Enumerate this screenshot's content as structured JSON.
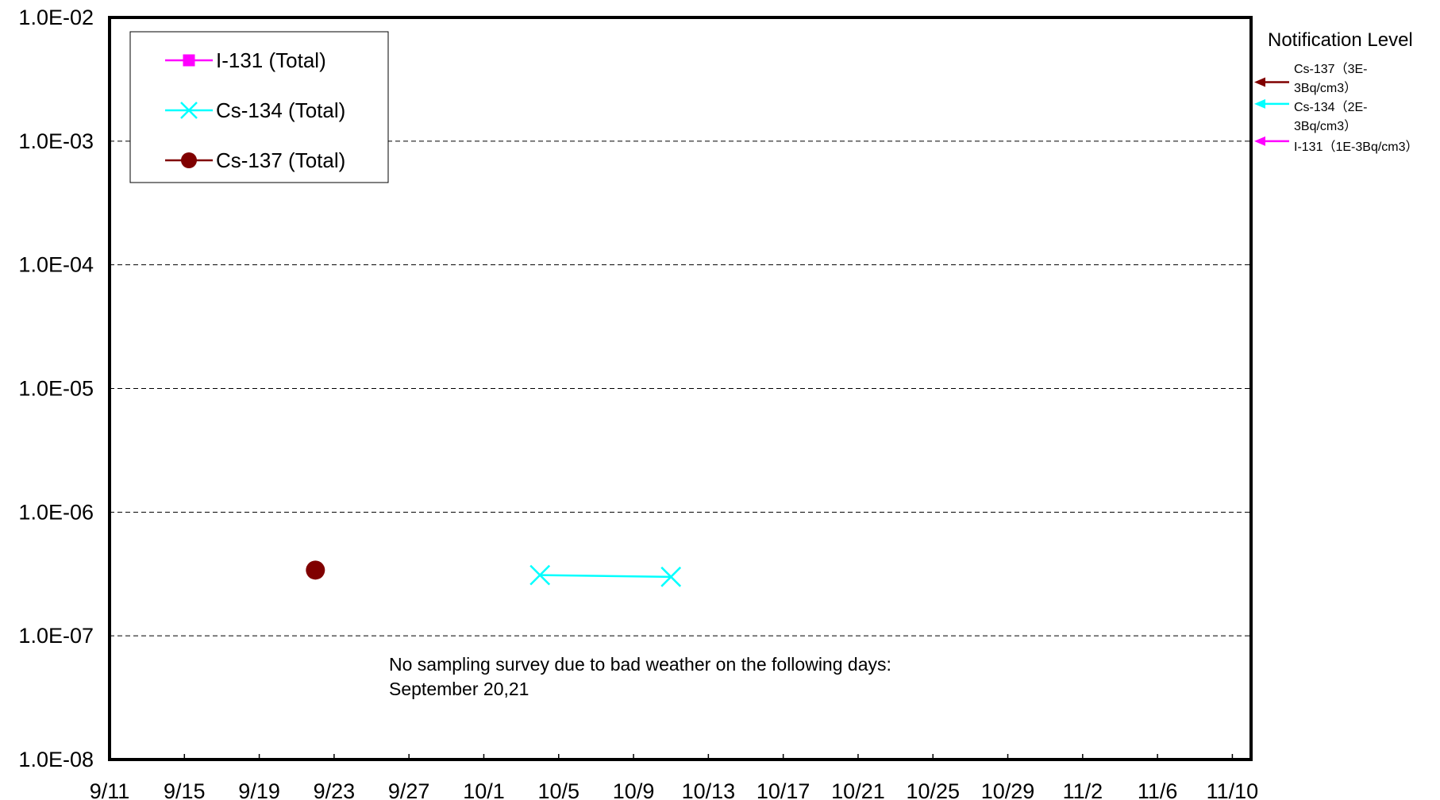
{
  "chart_data": {
    "type": "line",
    "title": "",
    "xlabel": "",
    "ylabel": "",
    "y_scale": "log",
    "ylim": [
      "1.0E-08",
      "1.0E-02"
    ],
    "xlim": [
      "2011-09-11",
      "2011-11-11"
    ],
    "x_tick_labels": [
      "9/11",
      "9/15",
      "9/19",
      "9/23",
      "9/27",
      "10/1",
      "10/5",
      "10/9",
      "10/13",
      "10/17",
      "10/21",
      "10/25",
      "10/29",
      "11/2",
      "11/6",
      "11/10"
    ],
    "x_tick_dates": [
      "2011-09-11",
      "2011-09-15",
      "2011-09-19",
      "2011-09-23",
      "2011-09-27",
      "2011-10-01",
      "2011-10-05",
      "2011-10-09",
      "2011-10-13",
      "2011-10-17",
      "2011-10-21",
      "2011-10-25",
      "2011-10-29",
      "2011-11-02",
      "2011-11-06",
      "2011-11-10"
    ],
    "y_tick_labels": [
      "1.0E-02",
      "1.0E-03",
      "1.0E-04",
      "1.0E-05",
      "1.0E-06",
      "1.0E-07",
      "1.0E-08"
    ],
    "y_tick_values": [
      0.01,
      0.001,
      0.0001,
      1e-05,
      1e-06,
      1e-07,
      1e-08
    ],
    "grid": "horizontal dashed",
    "legend_placement": "top-left",
    "series": [
      {
        "name": "I-131 (Total)",
        "color": "#ff00ff",
        "marker": "square",
        "x": [],
        "y": []
      },
      {
        "name": "Cs-134 (Total)",
        "color": "#00ffff",
        "marker": "x",
        "x": [
          "2011-10-04",
          "2011-10-11"
        ],
        "y": [
          3.1e-07,
          3e-07
        ]
      },
      {
        "name": "Cs-137 (Total)",
        "color": "#800000",
        "marker": "circle",
        "x": [
          "2011-09-22"
        ],
        "y": [
          3.4e-07
        ]
      }
    ],
    "annotation": {
      "line1": "No sampling survey due to bad weather on the following days:",
      "line2": "September 20,21"
    },
    "notification": {
      "title": "Notification Level",
      "items": [
        {
          "line1": "Cs-137（3E-",
          "line2": "3Bq/cm3）",
          "value": 0.003,
          "color": "#800000"
        },
        {
          "line1": "Cs-134（2E-",
          "line2": "3Bq/cm3）",
          "value": 0.002,
          "color": "#00ffff"
        },
        {
          "line1": "I-131（1E-3Bq/cm3）",
          "line2": "",
          "value": 0.001,
          "color": "#ff00ff"
        }
      ]
    }
  }
}
